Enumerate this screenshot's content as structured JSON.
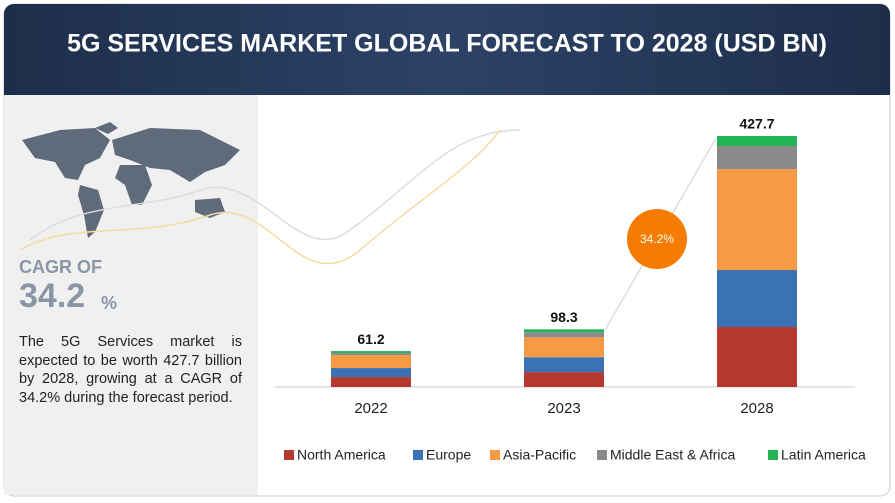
{
  "header": {
    "title": "5G SERVICES MARKET GLOBAL FORECAST TO 2028 (USD BN)"
  },
  "side_panel": {
    "cagr_label": "CAGR OF",
    "cagr_value": "34.2",
    "cagr_unit": "%",
    "description": "The 5G Services market is expected to be worth 427.7 billion by 2028, growing at a CAGR of 34.2% during the forecast period."
  },
  "chart_data": {
    "type": "stacked-bar",
    "categories": [
      "2022",
      "2023",
      "2028"
    ],
    "totals": [
      61.2,
      98.3,
      427.7
    ],
    "annotation": "34.2%",
    "series": [
      {
        "name": "North America",
        "color": "#b5392e",
        "values": [
          17.0,
          25.4,
          102.2
        ]
      },
      {
        "name": "Europe",
        "color": "#3a72b5",
        "values": [
          15.3,
          25.4,
          97.1
        ]
      },
      {
        "name": "Asia-Pacific",
        "color": "#f79a45",
        "values": [
          22.1,
          33.9,
          172.1
        ]
      },
      {
        "name": "Middle East & Africa",
        "color": "#8a8a8a",
        "values": [
          3.4,
          8.5,
          39.2
        ]
      },
      {
        "name": "Latin America",
        "color": "#22b455",
        "values": [
          3.4,
          5.1,
          17.1
        ]
      }
    ]
  }
}
